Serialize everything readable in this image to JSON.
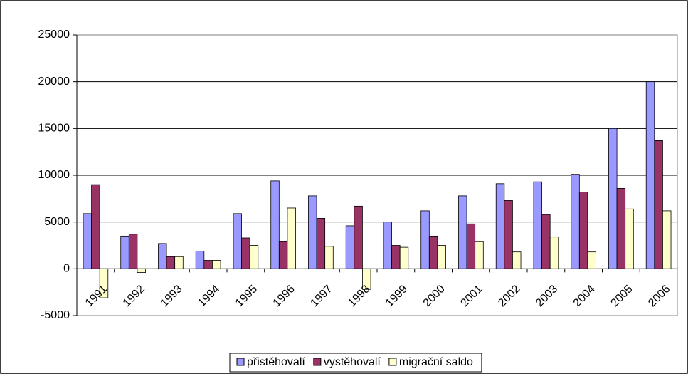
{
  "chart_data": {
    "type": "bar",
    "categories": [
      "1991",
      "1992",
      "1993",
      "1994",
      "1995",
      "1996",
      "1997",
      "1998",
      "1999",
      "2000",
      "2001",
      "2002",
      "2003",
      "2004",
      "2005",
      "2006"
    ],
    "series": [
      {
        "name": "přistěhovalí",
        "color": "#9999ff",
        "values": [
          5900,
          3500,
          2700,
          1900,
          5900,
          9400,
          7800,
          4600,
          5000,
          6200,
          7800,
          9100,
          9300,
          10100,
          15000,
          20000
        ]
      },
      {
        "name": "vystěhovalí",
        "color": "#993366",
        "values": [
          9000,
          3700,
          1300,
          900,
          3300,
          2900,
          5400,
          6700,
          2500,
          3500,
          4800,
          7300,
          5800,
          8200,
          8600,
          13700
        ]
      },
      {
        "name": "migrační saldo",
        "color": "#ffffcc",
        "values": [
          -3100,
          -400,
          1300,
          900,
          2500,
          6500,
          2400,
          -2200,
          2300,
          2500,
          2900,
          1800,
          3400,
          1800,
          6400,
          6200
        ]
      }
    ],
    "ylim": [
      -5000,
      25000
    ],
    "yticks": [
      -5000,
      0,
      5000,
      10000,
      15000,
      20000,
      25000
    ],
    "grid": true,
    "legend": "bottom"
  }
}
